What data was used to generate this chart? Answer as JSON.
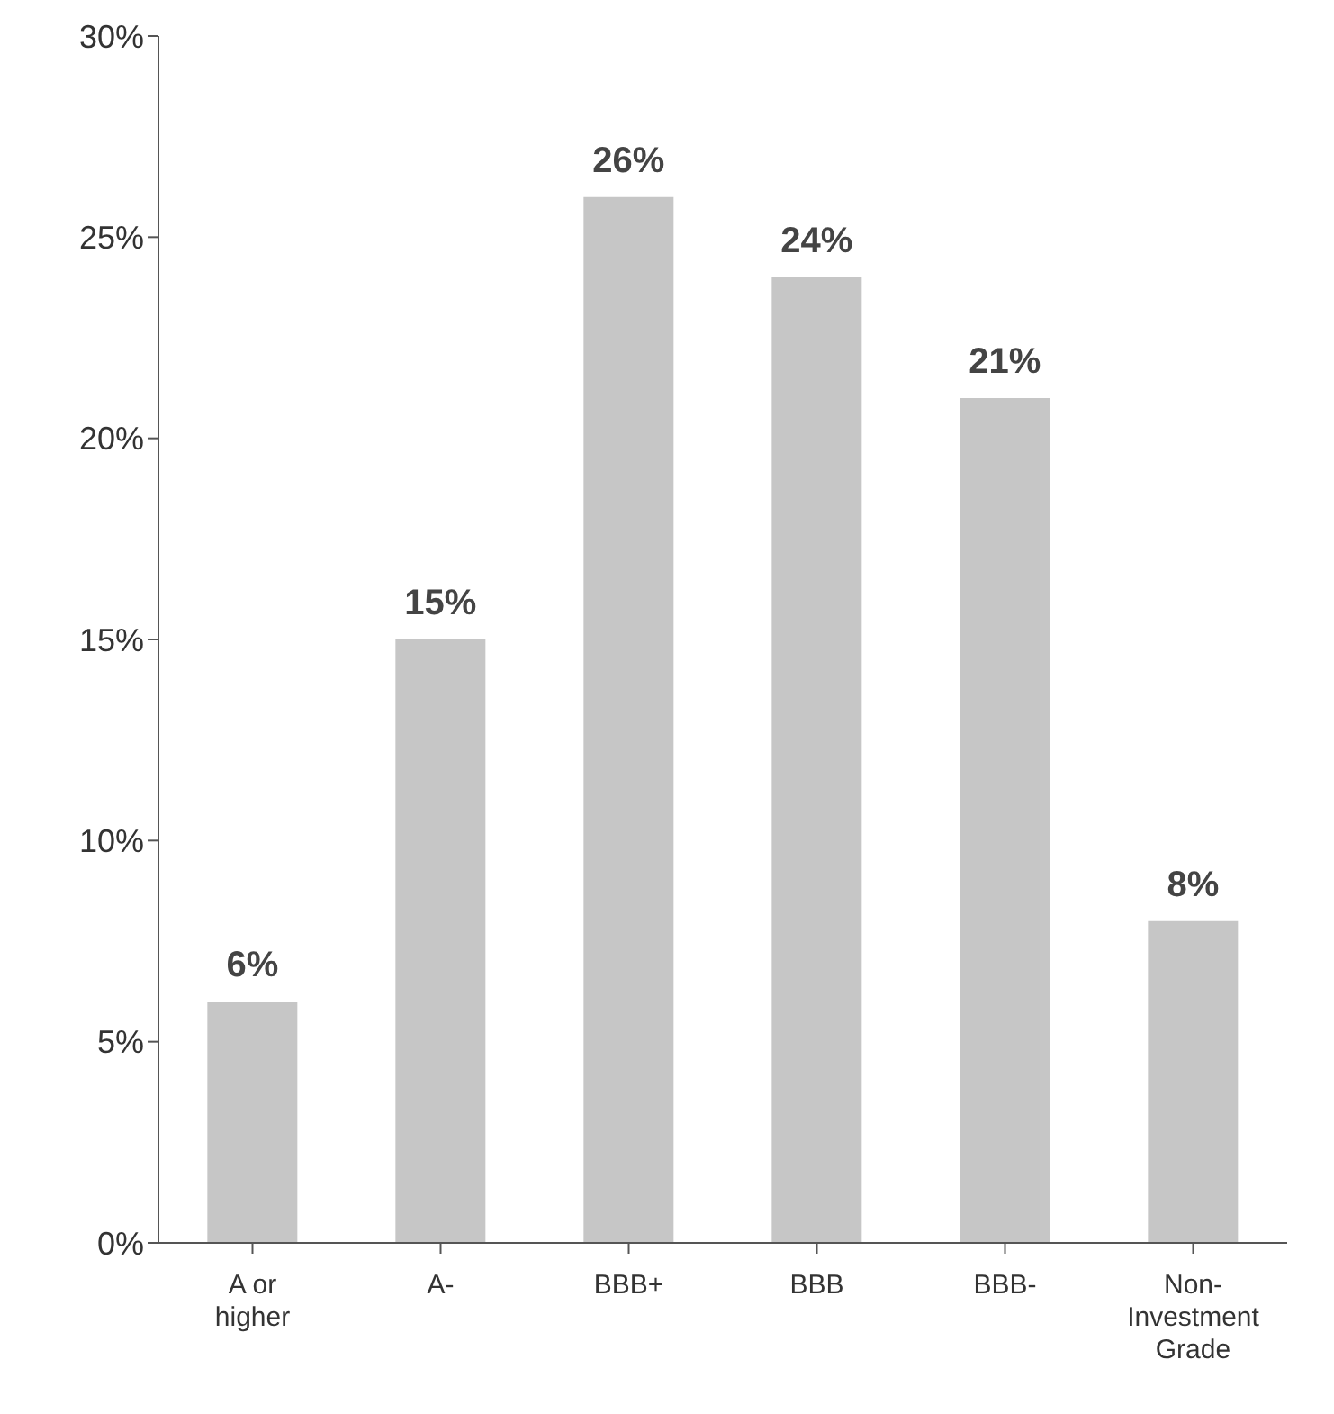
{
  "chart_data": {
    "type": "bar",
    "categories": [
      "A or higher",
      "A-",
      "BBB+",
      "BBB",
      "BBB-",
      "Non-Investment Grade"
    ],
    "values": [
      6,
      15,
      26,
      24,
      21,
      8
    ],
    "value_labels": [
      "6%",
      "15%",
      "26%",
      "24%",
      "21%",
      "8%"
    ],
    "color": "#c6c6c6",
    "ylim": [
      0,
      30
    ],
    "yticks": [
      {
        "value": 0,
        "label": "0%"
      },
      {
        "value": 5,
        "label": "5%"
      },
      {
        "value": 10,
        "label": "10%"
      },
      {
        "value": 15,
        "label": "15%"
      },
      {
        "value": 20,
        "label": "20%"
      },
      {
        "value": 25,
        "label": "25%"
      },
      {
        "value": 30,
        "label": "30%"
      }
    ],
    "grid": false,
    "legend": false
  }
}
